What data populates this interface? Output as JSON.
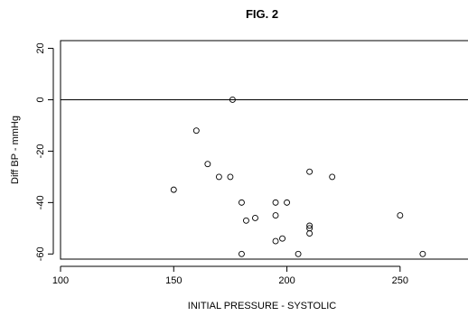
{
  "chart_data": {
    "type": "scatter",
    "title": "FIG. 2",
    "xlabel": "INITIAL PRESSURE - SYSTOLIC",
    "ylabel": "Diff BP - mmHg",
    "xlim": [
      100,
      280
    ],
    "ylim": [
      -62,
      23
    ],
    "xticks": [
      100,
      150,
      200,
      250
    ],
    "yticks": [
      -60,
      -40,
      -20,
      0,
      20
    ],
    "reference_line_y": 0,
    "points": [
      {
        "x": 176,
        "y": 0
      },
      {
        "x": 160,
        "y": -12
      },
      {
        "x": 165,
        "y": -25
      },
      {
        "x": 170,
        "y": -30
      },
      {
        "x": 175,
        "y": -30
      },
      {
        "x": 210,
        "y": -28
      },
      {
        "x": 220,
        "y": -30
      },
      {
        "x": 150,
        "y": -35
      },
      {
        "x": 180,
        "y": -40
      },
      {
        "x": 195,
        "y": -40
      },
      {
        "x": 200,
        "y": -40
      },
      {
        "x": 182,
        "y": -47
      },
      {
        "x": 186,
        "y": -46
      },
      {
        "x": 195,
        "y": -45
      },
      {
        "x": 250,
        "y": -45
      },
      {
        "x": 210,
        "y": -49
      },
      {
        "x": 210,
        "y": -50
      },
      {
        "x": 210,
        "y": -52
      },
      {
        "x": 198,
        "y": -54
      },
      {
        "x": 195,
        "y": -55
      },
      {
        "x": 180,
        "y": -60
      },
      {
        "x": 205,
        "y": -60
      },
      {
        "x": 260,
        "y": -60
      }
    ],
    "grid": false,
    "legend": "none",
    "point_style": "open-circle"
  }
}
